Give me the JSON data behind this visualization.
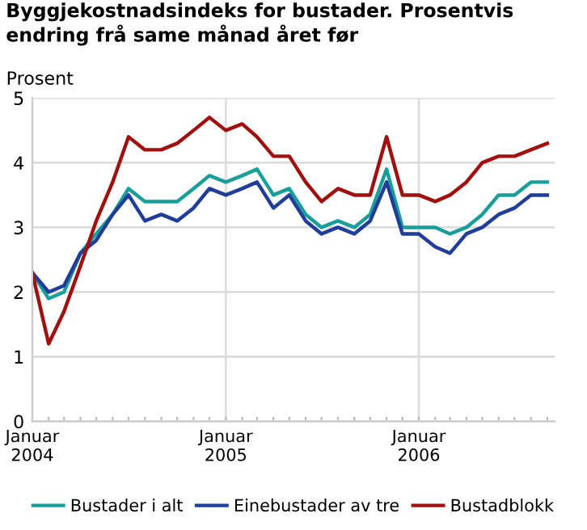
{
  "chart_data": {
    "type": "line",
    "title": "Byggjekostnadsindeks for bustader. Prosentvis endring frå same månad året før",
    "ylabel": "Prosent",
    "x": [
      "2004-01",
      "2004-02",
      "2004-03",
      "2004-04",
      "2004-05",
      "2004-06",
      "2004-07",
      "2004-08",
      "2004-09",
      "2004-10",
      "2004-11",
      "2004-12",
      "2005-01",
      "2005-02",
      "2005-03",
      "2005-04",
      "2005-05",
      "2005-06",
      "2005-07",
      "2005-08",
      "2005-09",
      "2005-10",
      "2005-11",
      "2005-12",
      "2006-01",
      "2006-02",
      "2006-03",
      "2006-04",
      "2006-05",
      "2006-06",
      "2006-07",
      "2006-08",
      "2006-09"
    ],
    "series": [
      {
        "name": "Bustader i alt",
        "color": "#1a9e9a",
        "values": [
          2.3,
          1.9,
          2.0,
          2.6,
          2.9,
          3.2,
          3.6,
          3.4,
          3.4,
          3.4,
          3.6,
          3.8,
          3.7,
          3.8,
          3.9,
          3.5,
          3.6,
          3.2,
          3.0,
          3.1,
          3.0,
          3.2,
          3.9,
          3.0,
          3.0,
          3.0,
          2.9,
          3.0,
          3.2,
          3.5,
          3.5,
          3.7,
          3.7
        ]
      },
      {
        "name": "Einebustader av tre",
        "color": "#1f3d99",
        "values": [
          2.3,
          2.0,
          2.1,
          2.6,
          2.8,
          3.2,
          3.5,
          3.1,
          3.2,
          3.1,
          3.3,
          3.6,
          3.5,
          3.6,
          3.7,
          3.3,
          3.5,
          3.1,
          2.9,
          3.0,
          2.9,
          3.1,
          3.7,
          2.9,
          2.9,
          2.7,
          2.6,
          2.9,
          3.0,
          3.2,
          3.3,
          3.5,
          3.5
        ]
      },
      {
        "name": "Bustadblokk",
        "color": "#a0100f",
        "values": [
          2.3,
          1.2,
          1.7,
          2.4,
          3.1,
          3.7,
          4.4,
          4.2,
          4.2,
          4.3,
          4.5,
          4.7,
          4.5,
          4.6,
          4.4,
          4.1,
          4.1,
          3.7,
          3.4,
          3.6,
          3.5,
          3.5,
          4.4,
          3.5,
          3.5,
          3.4,
          3.5,
          3.7,
          4.0,
          4.1,
          4.1,
          4.2,
          4.3
        ]
      }
    ],
    "xlim": [
      "2004-01",
      "2006-09-15"
    ],
    "xticks": [
      {
        "value": "2004-01",
        "label": "Januar\n2004"
      },
      {
        "value": "2004-02",
        "label": null
      },
      {
        "value": "2004-03",
        "label": null
      },
      {
        "value": "2004-04",
        "label": null
      },
      {
        "value": "2004-05",
        "label": null
      },
      {
        "value": "2004-06",
        "label": null
      },
      {
        "value": "2004-07",
        "label": null
      },
      {
        "value": "2004-08",
        "label": null
      },
      {
        "value": "2004-09",
        "label": null
      },
      {
        "value": "2004-10",
        "label": null
      },
      {
        "value": "2004-11",
        "label": null
      },
      {
        "value": "2004-12",
        "label": null
      },
      {
        "value": "2005-01",
        "label": "Januar\n2005"
      },
      {
        "value": "2005-02",
        "label": null
      },
      {
        "value": "2005-03",
        "label": null
      },
      {
        "value": "2005-04",
        "label": null
      },
      {
        "value": "2005-05",
        "label": null
      },
      {
        "value": "2005-06",
        "label": null
      },
      {
        "value": "2005-07",
        "label": null
      },
      {
        "value": "2005-08",
        "label": null
      },
      {
        "value": "2005-09",
        "label": null
      },
      {
        "value": "2005-10",
        "label": null
      },
      {
        "value": "2005-11",
        "label": null
      },
      {
        "value": "2005-12",
        "label": null
      },
      {
        "value": "2006-01",
        "label": "Januar\n2006"
      },
      {
        "value": "2006-02",
        "label": null
      },
      {
        "value": "2006-03",
        "label": null
      },
      {
        "value": "2006-04",
        "label": null
      },
      {
        "value": "2006-05",
        "label": null
      },
      {
        "value": "2006-06",
        "label": null
      },
      {
        "value": "2006-07",
        "label": null
      },
      {
        "value": "2006-08",
        "label": null
      },
      {
        "value": "2006-09",
        "label": null
      }
    ],
    "ylim": [
      0,
      5
    ],
    "yticks": [
      0,
      1,
      2,
      3,
      4,
      5
    ],
    "grid": true,
    "legend": "bottom"
  }
}
